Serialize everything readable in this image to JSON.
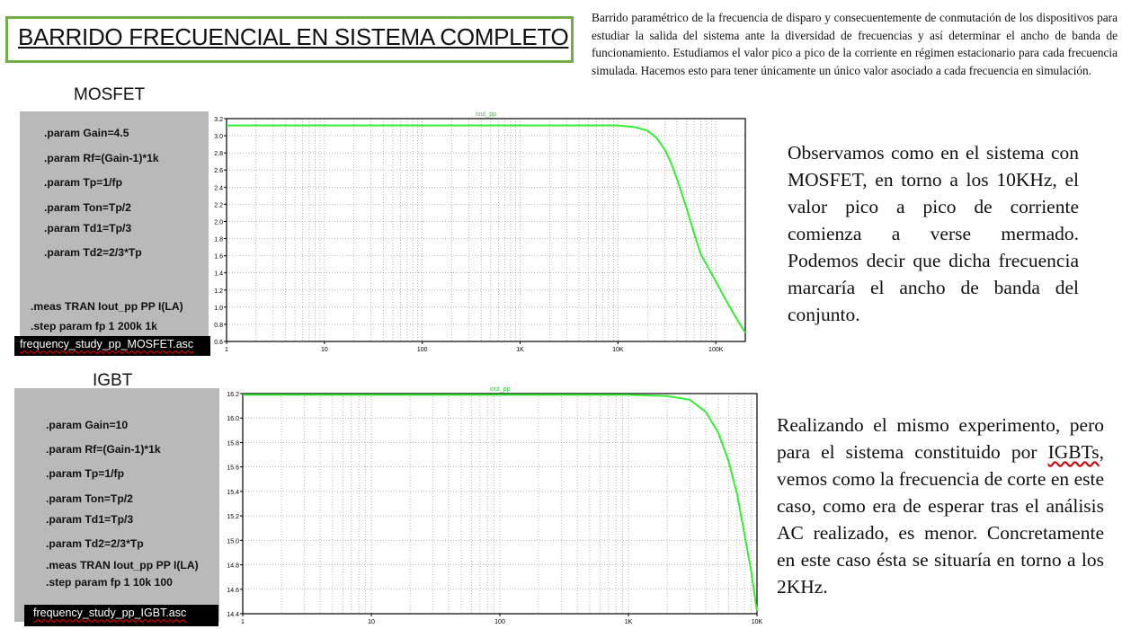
{
  "title": "BARRIDO FRECUENCIAL EN SISTEMA COMPLETO",
  "intro": "Barrido paramétrico de la frecuencia de disparo y consecuentemente de conmutación de los dispositivos para estudiar la salida del sistema ante la diversidad de frecuencias y así determinar el ancho de banda de funcionamiento.  Estudiamos el valor pico a pico de la corriente en régimen estacionario para cada frecuencia simulada. Hacemos esto para tener únicamente un único valor asociado a cada frecuencia en simulación.",
  "mosfet": {
    "label": "MOSFET",
    "code": [
      ".param Gain=4.5",
      ".param Rf=(Gain-1)*1k",
      ".param Tp=1/fp",
      ".param Ton=Tp/2",
      ".param Td1=Tp/3",
      ".param Td2=2/3*Tp",
      ".meas TRAN Iout_pp PP I(LA)",
      ".step param fp 1 200k 1k"
    ],
    "filename": "frequency_study_pp_MOSFET.asc",
    "description": "Observamos como en el sistema con MOSFET, en torno a los 10KHz, el valor pico a pico de corriente comienza a verse mermado. Podemos decir que dicha frecuencia marcaría el ancho de banda del conjunto."
  },
  "igbt": {
    "label": "IGBT",
    "code": [
      ".param Gain=10",
      ".param Rf=(Gain-1)*1k",
      ".param Tp=1/fp",
      ".param Ton=Tp/2",
      ".param Td1=Tp/3",
      ".param Td2=2/3*Tp",
      ".meas TRAN Iout_pp PP I(LA)",
      ".step param fp 1 10k 100"
    ],
    "filename": "frequency_study_pp_IGBT.asc",
    "description_before": "Realizando el mismo experimento, pero para el sistema constituido por ",
    "description_igbts": "IGBTs",
    "description_after": ", vemos como la frecuencia de corte en este caso, como era de esperar tras el análisis AC realizado, es menor. Concretamente en este caso ésta se situaría en torno a los 2KHz."
  },
  "chart_data": [
    {
      "type": "line",
      "title": "iout_pp",
      "x_scale": "log",
      "xlim": [
        1,
        200000
      ],
      "ylim": [
        0.6,
        3.2
      ],
      "xticks": [
        "1",
        "10",
        "100",
        "1K",
        "10K",
        "100K"
      ],
      "yticks": [
        "0.6",
        "0.8",
        "1.0",
        "1.2",
        "1.4",
        "1.6",
        "1.8",
        "2.0",
        "2.2",
        "2.4",
        "2.6",
        "2.8",
        "3.0",
        "3.2"
      ],
      "grid": true,
      "color": "#33ee33",
      "series": [
        {
          "x": [
            1,
            10,
            100,
            1000,
            10000,
            15000,
            20000,
            25000,
            30000,
            35000,
            40000,
            50000,
            60000,
            70000,
            80000,
            100000,
            130000,
            160000,
            200000
          ],
          "y": [
            3.12,
            3.12,
            3.12,
            3.12,
            3.12,
            3.1,
            3.06,
            2.97,
            2.84,
            2.68,
            2.5,
            2.16,
            1.86,
            1.62,
            1.5,
            1.3,
            1.06,
            0.88,
            0.7
          ]
        }
      ]
    },
    {
      "type": "line",
      "title": "iout_pp",
      "x_scale": "log",
      "xlim": [
        1,
        10000
      ],
      "ylim": [
        14.4,
        16.2
      ],
      "xticks": [
        "1",
        "10",
        "100",
        "1K",
        "10K"
      ],
      "yticks": [
        "14.4",
        "14.6",
        "14.8",
        "15.0",
        "15.2",
        "15.4",
        "15.6",
        "15.8",
        "16.0",
        "16.2"
      ],
      "grid": true,
      "color": "#33ee33",
      "series": [
        {
          "x": [
            1,
            10,
            100,
            1000,
            2000,
            3000,
            4000,
            5000,
            6000,
            7000,
            8000,
            9000,
            10000
          ],
          "y": [
            16.19,
            16.19,
            16.19,
            16.19,
            16.18,
            16.15,
            16.05,
            15.88,
            15.65,
            15.38,
            15.05,
            14.75,
            14.42
          ]
        }
      ]
    }
  ]
}
